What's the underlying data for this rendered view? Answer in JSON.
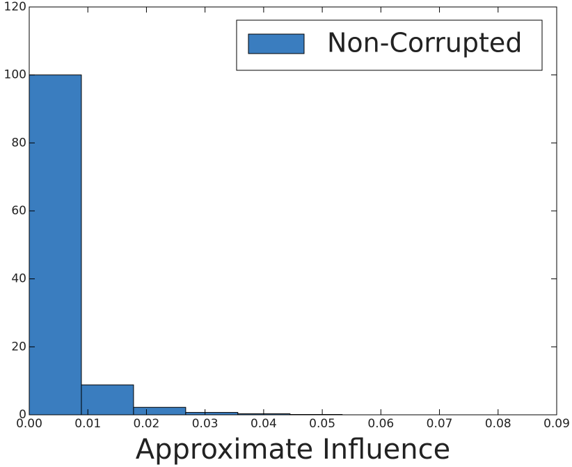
{
  "chart_data": {
    "type": "histogram",
    "x_label": "Approximate Influence",
    "bins": [
      0,
      0.0089,
      0.0178,
      0.0267,
      0.0356,
      0.0445,
      0.0534
    ],
    "series": [
      {
        "name": "Non-Corrupted",
        "color": "#3a7dbf",
        "values": [
          100,
          8.8,
          2.2,
          0.7,
          0.3,
          0.1
        ]
      }
    ],
    "xlim": [
      0,
      0.09
    ],
    "xticks": [
      {
        "value": 0,
        "label": "0.00"
      },
      {
        "value": 0.01,
        "label": "0.01"
      },
      {
        "value": 0.02,
        "label": "0.02"
      },
      {
        "value": 0.03,
        "label": "0.03"
      },
      {
        "value": 0.04,
        "label": "0.04"
      },
      {
        "value": 0.05,
        "label": "0.05"
      },
      {
        "value": 0.06,
        "label": "0.06"
      },
      {
        "value": 0.07,
        "label": "0.07"
      },
      {
        "value": 0.08,
        "label": "0.08"
      },
      {
        "value": 0.09,
        "label": "0.09"
      }
    ],
    "ylim": [
      0,
      120
    ],
    "yticks": [
      0,
      20,
      40,
      60,
      80,
      100,
      120
    ],
    "legend": "upper right"
  }
}
